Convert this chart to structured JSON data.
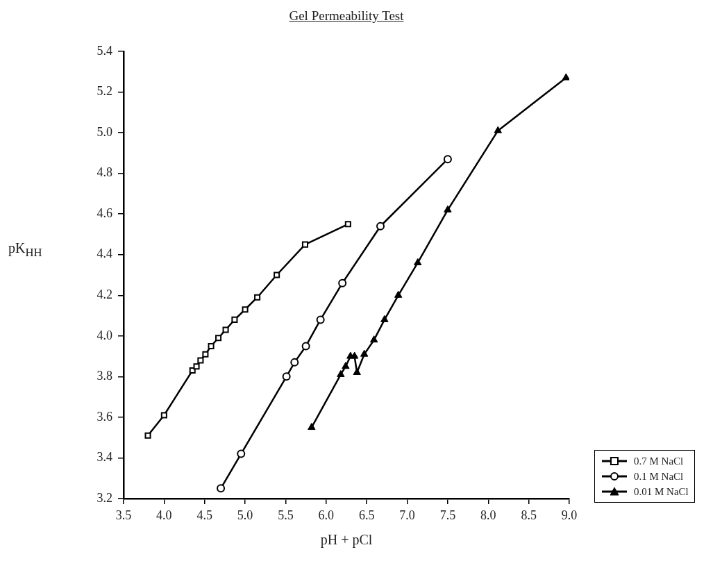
{
  "chart_data": {
    "type": "line",
    "title": "Gel Permeability Test",
    "xlabel": "pH + pCl",
    "ylabel": "pK$_{HH}$",
    "xlim": [
      3.5,
      9.0
    ],
    "xticks": [
      {
        "value": 3.5,
        "label": "3.5"
      },
      {
        "value": 4,
        "label": "4.0"
      },
      {
        "value": 4.5,
        "label": "4.5"
      },
      {
        "value": 5,
        "label": "5.0"
      },
      {
        "value": 5.5,
        "label": "5.5"
      },
      {
        "value": 6,
        "label": "6.0"
      },
      {
        "value": 6.5,
        "label": "6.5"
      },
      {
        "value": 7,
        "label": "7.0"
      },
      {
        "value": 7.5,
        "label": "7.5"
      },
      {
        "value": 8,
        "label": "8.0"
      },
      {
        "value": 8.5,
        "label": "8.5"
      },
      {
        "value": 9,
        "label": "9.0"
      }
    ],
    "ylim": [
      3.2,
      5.4
    ],
    "yticks": [
      3.2,
      3.4,
      3.6,
      3.8,
      {
        "value": 4,
        "label": "4.0"
      },
      4.2,
      4.4,
      4.6,
      4.8,
      {
        "value": 5,
        "label": "5.0"
      },
      5.2,
      5.4
    ],
    "grid": false,
    "legend": "bottom right",
    "line_style": "solid",
    "series": [
      {
        "name": "0.7 M NaCl",
        "color": "#000000",
        "marker": "square",
        "x": [
          3.8,
          4.0,
          4.35,
          4.4,
          4.45,
          4.51,
          4.58,
          4.67,
          4.76,
          4.87,
          5.0,
          5.15,
          5.39,
          5.74,
          6.27
        ],
        "values": [
          3.51,
          3.61,
          3.83,
          3.85,
          3.88,
          3.91,
          3.95,
          3.99,
          4.03,
          4.08,
          4.13,
          4.19,
          4.3,
          4.45,
          4.55
        ]
      },
      {
        "name": "0.1 M NaCl",
        "color": "#000000",
        "marker": "circle",
        "x": [
          4.7,
          4.95,
          5.51,
          5.61,
          5.75,
          5.93,
          6.2,
          6.67,
          7.5
        ],
        "values": [
          3.25,
          3.42,
          3.8,
          3.87,
          3.95,
          4.08,
          4.26,
          4.54,
          4.87
        ]
      },
      {
        "name": "0.01 M NaCl",
        "color": "#000000",
        "marker": "triangle",
        "x": [
          5.82,
          6.18,
          6.24,
          6.3,
          6.35,
          6.38,
          6.47,
          6.59,
          6.72,
          6.89,
          7.13,
          7.5,
          8.12,
          8.96
        ],
        "values": [
          3.55,
          3.81,
          3.85,
          3.9,
          3.9,
          3.82,
          3.91,
          3.98,
          4.08,
          4.2,
          4.36,
          4.62,
          5.01,
          5.27
        ]
      }
    ]
  }
}
